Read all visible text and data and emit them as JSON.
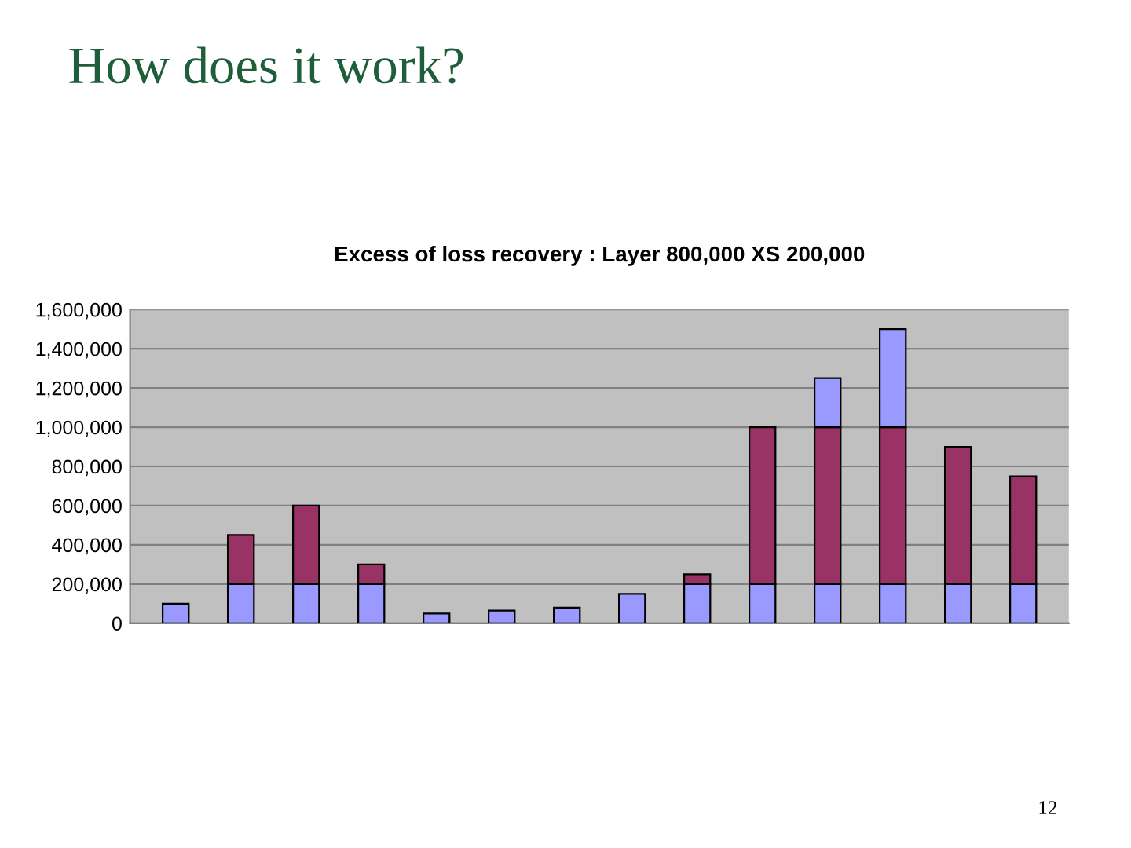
{
  "chart_data": {
    "type": "bar",
    "title": "Excess of loss recovery : Layer 800,000 XS 200,000",
    "categories": [
      null,
      null,
      null,
      null,
      null,
      null,
      null,
      null,
      null,
      null,
      null,
      null,
      null,
      null
    ],
    "stacked": true,
    "series": [
      {
        "color": "#9999ff",
        "values": [
          100000,
          200000,
          200000,
          200000,
          50000,
          65000,
          80000,
          150000,
          200000,
          200000,
          200000,
          200000,
          200000,
          200000
        ]
      },
      {
        "color": "#993366",
        "values": [
          null,
          250000,
          400000,
          100000,
          null,
          null,
          null,
          null,
          50000,
          800000,
          800000,
          800000,
          700000,
          550000
        ]
      },
      {
        "color": "#9999ff",
        "values": [
          null,
          null,
          null,
          null,
          null,
          null,
          null,
          null,
          null,
          null,
          250000,
          500000,
          null,
          null
        ]
      }
    ],
    "ylim": [
      0,
      1600000
    ],
    "yticks": [
      {
        "value": 0,
        "label": "0"
      },
      {
        "value": 200000,
        "label": "200,000"
      },
      {
        "value": 400000,
        "label": "400,000"
      },
      {
        "value": 600000,
        "label": "600,000"
      },
      {
        "value": 800000,
        "label": "800,000"
      },
      {
        "value": 1000000,
        "label": "1,000,000"
      },
      {
        "value": 1200000,
        "label": "1,200,000"
      },
      {
        "value": 1400000,
        "label": "1,400,000"
      },
      {
        "value": 1600000,
        "label": "1,600,000"
      }
    ],
    "grid": "y",
    "annotations": [
      "How does it work?",
      "12"
    ]
  }
}
